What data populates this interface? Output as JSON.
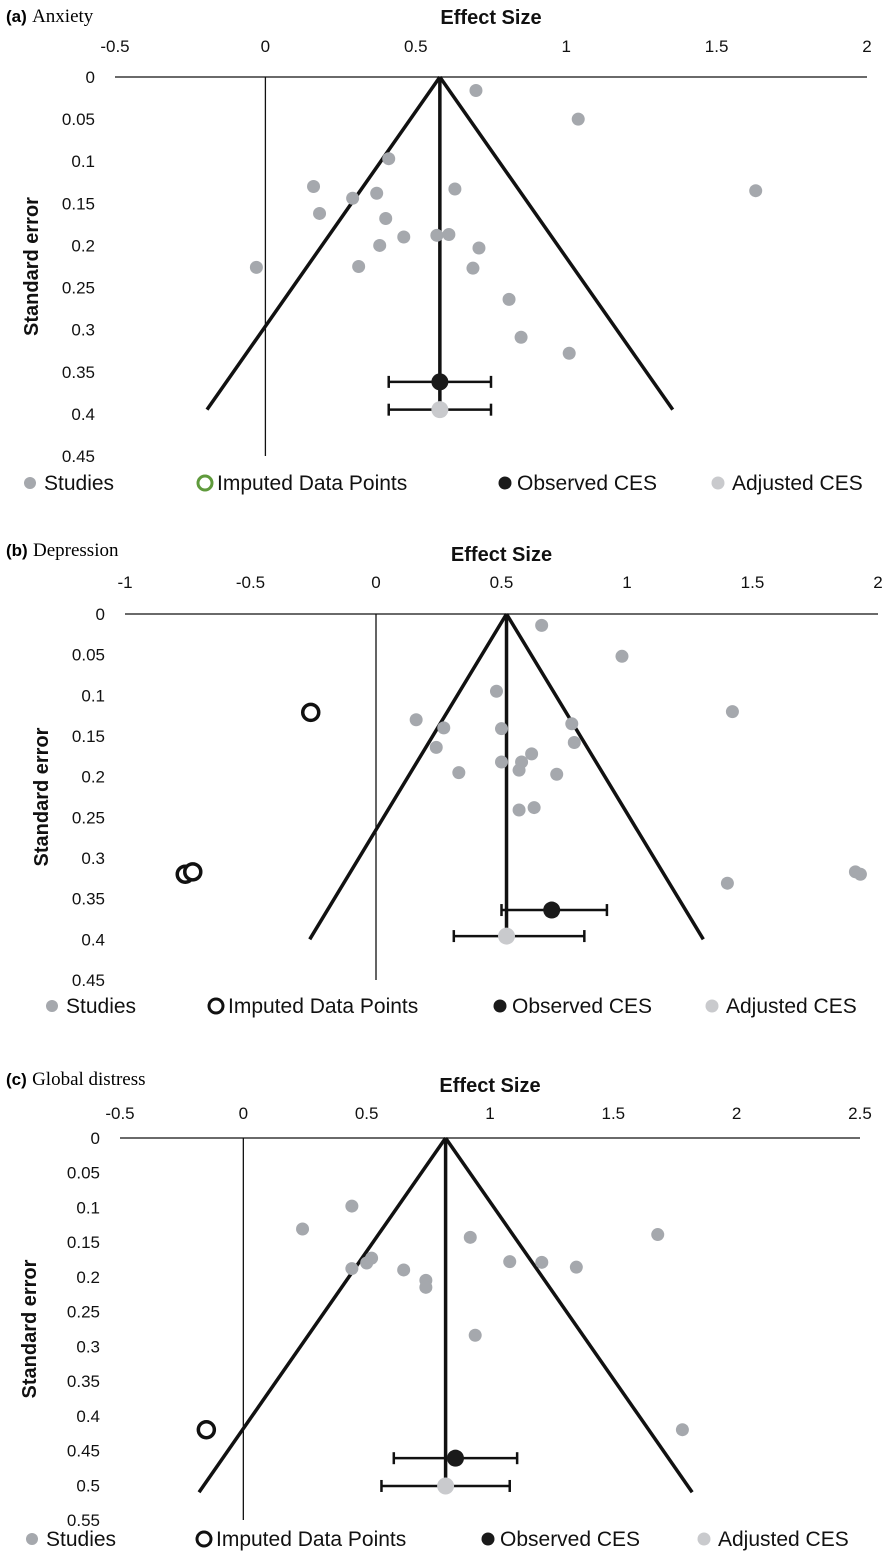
{
  "legend_labels": {
    "studies": "Studies",
    "imputed": "Imputed Data Points",
    "observed": "Observed CES",
    "adjusted": "Adjusted CES"
  },
  "colors": {
    "studies": "#a5a8ad",
    "observed": "#1a1a1a",
    "adjusted": "#c9cacd",
    "imputed_a": "#5f9a3c",
    "imputed_bc": "#111111",
    "funnel": "#111111"
  },
  "chart_data": [
    {
      "type": "scatter",
      "panel": "(a)",
      "panel_name": "Anxiety",
      "xlabel": "Effect Size",
      "ylabel": "Standard error",
      "xlim": [
        -0.5,
        2
      ],
      "ylim": [
        0,
        0.45
      ],
      "xticks": [
        "-0.5",
        "0",
        "0.5",
        "1",
        "1.5",
        "2"
      ],
      "yticks": [
        "0",
        "0.05",
        "0.1",
        "0.15",
        "0.2",
        "0.25",
        "0.3",
        "0.35",
        "0.4",
        "0.45"
      ],
      "y_reversed": true,
      "mean_effect": 0.58,
      "funnel_bottom_se": 0.395,
      "zero_line_bottom_se": 0.45,
      "studies": [
        [
          0.7,
          0.016
        ],
        [
          1.04,
          0.05
        ],
        [
          0.41,
          0.097
        ],
        [
          0.16,
          0.13
        ],
        [
          0.63,
          0.133
        ],
        [
          1.63,
          0.135
        ],
        [
          0.37,
          0.138
        ],
        [
          0.29,
          0.144
        ],
        [
          0.18,
          0.162
        ],
        [
          0.4,
          0.168
        ],
        [
          0.57,
          0.188
        ],
        [
          0.61,
          0.187
        ],
        [
          0.46,
          0.19
        ],
        [
          0.71,
          0.203
        ],
        [
          0.38,
          0.2
        ],
        [
          -0.03,
          0.226
        ],
        [
          0.31,
          0.225
        ],
        [
          0.69,
          0.227
        ],
        [
          0.81,
          0.264
        ],
        [
          0.85,
          0.309
        ],
        [
          1.01,
          0.328
        ]
      ],
      "imputed": [],
      "observed": {
        "x": 0.58,
        "se": 0.362,
        "ci": [
          0.41,
          0.75
        ]
      },
      "adjusted": {
        "x": 0.58,
        "se": 0.395,
        "ci": [
          0.41,
          0.75
        ]
      }
    },
    {
      "type": "scatter",
      "panel": "(b)",
      "panel_name": "Depression",
      "xlabel": "Effect Size",
      "ylabel": "Standard error",
      "xlim": [
        -1,
        2
      ],
      "ylim": [
        0,
        0.45
      ],
      "xticks": [
        "-1",
        "-0.5",
        "0",
        "0.5",
        "1",
        "1.5",
        "2"
      ],
      "yticks": [
        "0",
        "0.05",
        "0.1",
        "0.15",
        "0.2",
        "0.25",
        "0.3",
        "0.35",
        "0.4",
        "0.45"
      ],
      "y_reversed": true,
      "mean_effect": 0.52,
      "funnel_bottom_se": 0.4,
      "zero_line_bottom_se": 0.45,
      "studies": [
        [
          0.66,
          0.014
        ],
        [
          0.98,
          0.052
        ],
        [
          0.48,
          0.095
        ],
        [
          1.42,
          0.12
        ],
        [
          0.16,
          0.13
        ],
        [
          0.78,
          0.135
        ],
        [
          0.27,
          0.14
        ],
        [
          0.5,
          0.141
        ],
        [
          0.79,
          0.158
        ],
        [
          0.24,
          0.164
        ],
        [
          0.62,
          0.172
        ],
        [
          0.5,
          0.182
        ],
        [
          0.58,
          0.182
        ],
        [
          0.57,
          0.192
        ],
        [
          0.33,
          0.195
        ],
        [
          0.72,
          0.197
        ],
        [
          0.63,
          0.238
        ],
        [
          0.57,
          0.241
        ],
        [
          1.91,
          0.317
        ],
        [
          1.93,
          0.32
        ],
        [
          1.4,
          0.331
        ]
      ],
      "imputed": [
        [
          -0.26,
          0.121
        ],
        [
          -0.76,
          0.32
        ],
        [
          -0.73,
          0.317
        ]
      ],
      "observed": {
        "x": 0.7,
        "se": 0.364,
        "ci": [
          0.5,
          0.92
        ]
      },
      "adjusted": {
        "x": 0.52,
        "se": 0.396,
        "ci": [
          0.31,
          0.83
        ]
      }
    },
    {
      "type": "scatter",
      "panel": "(c)",
      "panel_name": "Global distress",
      "xlabel": "Effect Size",
      "ylabel": "Standard error",
      "xlim": [
        -0.5,
        2.5
      ],
      "ylim": [
        0,
        0.55
      ],
      "xticks": [
        "-0.5",
        "0",
        "0.5",
        "1",
        "1.5",
        "2",
        "2.5"
      ],
      "yticks": [
        "0",
        "0.05",
        "0.1",
        "0.15",
        "0.2",
        "0.25",
        "0.3",
        "0.35",
        "0.4",
        "0.45",
        "0.5",
        "0.55"
      ],
      "y_reversed": true,
      "mean_effect": 0.82,
      "funnel_bottom_se": 0.51,
      "zero_line_bottom_se": 0.55,
      "studies": [
        [
          0.44,
          0.098
        ],
        [
          0.24,
          0.131
        ],
        [
          0.92,
          0.143
        ],
        [
          1.68,
          0.139
        ],
        [
          0.52,
          0.173
        ],
        [
          0.5,
          0.18
        ],
        [
          1.08,
          0.178
        ],
        [
          1.21,
          0.179
        ],
        [
          0.44,
          0.188
        ],
        [
          0.65,
          0.19
        ],
        [
          1.35,
          0.186
        ],
        [
          0.74,
          0.205
        ],
        [
          0.74,
          0.215
        ],
        [
          0.94,
          0.284
        ],
        [
          1.78,
          0.42
        ]
      ],
      "imputed": [
        [
          -0.15,
          0.42
        ]
      ],
      "observed": {
        "x": 0.86,
        "se": 0.461,
        "ci": [
          0.61,
          1.11
        ]
      },
      "adjusted": {
        "x": 0.82,
        "se": 0.501,
        "ci": [
          0.56,
          1.08
        ]
      }
    }
  ]
}
